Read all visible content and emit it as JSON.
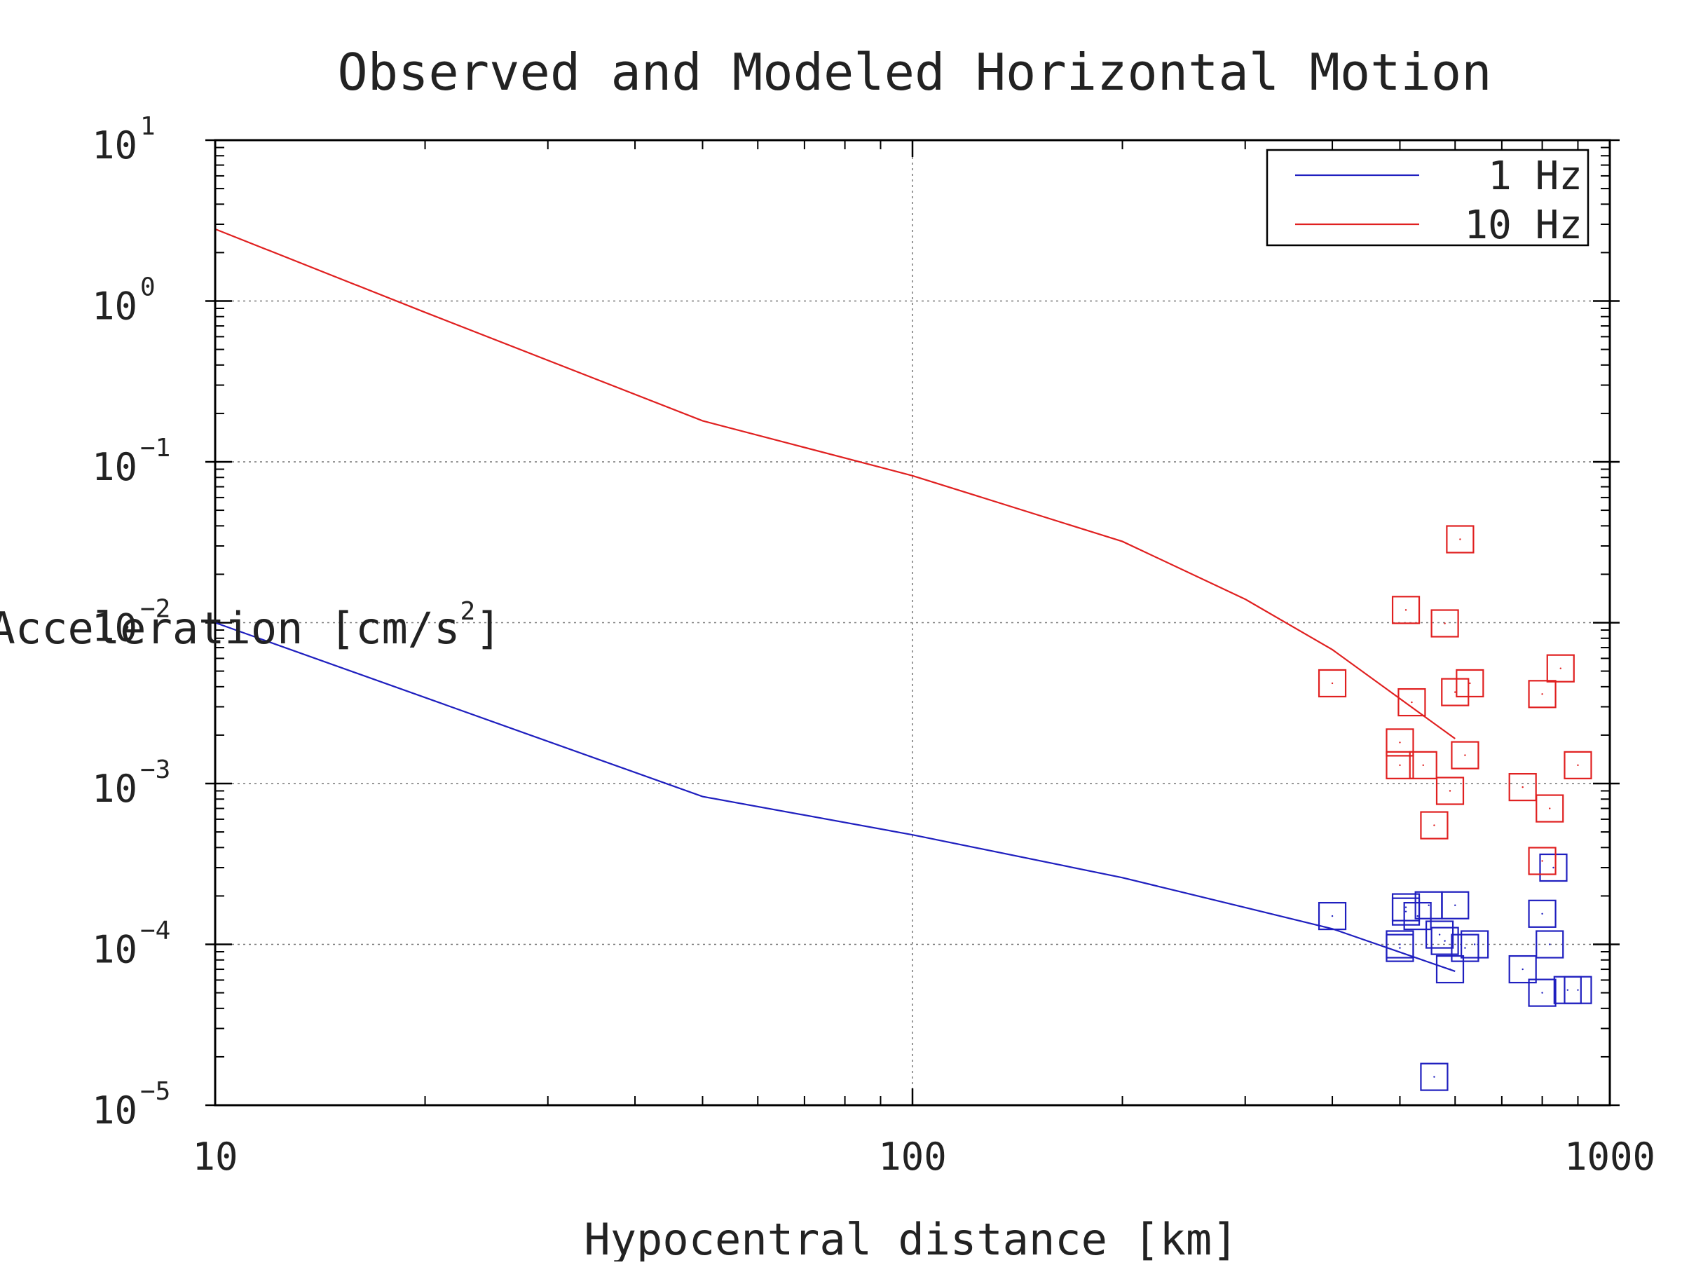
{
  "chart_data": {
    "type": "scatter",
    "title": "Observed and Modeled Horizontal Motion",
    "xlabel": "Hypocentral distance [km]",
    "ylabel": "Acceleration [cm/s2]",
    "ylabel_base": "Acceleration [cm/s",
    "ylabel_exp": "2",
    "ylabel_tail": "]",
    "x_scale": "log",
    "y_scale": "log",
    "xlim": [
      10,
      1000
    ],
    "ylim": [
      1e-05,
      10
    ],
    "grid": true,
    "legend_position": "top-right",
    "x_ticks": [
      {
        "value": 10,
        "label": "10"
      },
      {
        "value": 100,
        "label": "100"
      },
      {
        "value": 1000,
        "label": "1000"
      }
    ],
    "y_ticks": [
      {
        "value": 10,
        "base": "10",
        "exp": "1"
      },
      {
        "value": 1,
        "base": "10",
        "exp": "0"
      },
      {
        "value": 0.1,
        "base": "10",
        "exp": "−1"
      },
      {
        "value": 0.01,
        "base": "10",
        "exp": "−2"
      },
      {
        "value": 0.001,
        "base": "10",
        "exp": "−3"
      },
      {
        "value": 0.0001,
        "base": "10",
        "exp": "−4"
      },
      {
        "value": 1e-05,
        "base": "10",
        "exp": "−5"
      }
    ],
    "series": [
      {
        "name": "1 Hz",
        "color": "#1f1fbf",
        "model": {
          "x": [
            10,
            50,
            100,
            200,
            400,
            600
          ],
          "y": [
            0.01,
            0.00083,
            0.00048,
            0.00026,
            0.000125,
            6.8e-05
          ]
        },
        "observed": {
          "x": [
            400,
            500,
            500,
            510,
            510,
            530,
            550,
            560,
            570,
            580,
            590,
            600,
            620,
            640,
            750,
            800,
            800,
            820,
            830,
            870,
            900
          ],
          "y": [
            0.00015,
            9.5e-05,
            0.0001,
            0.00017,
            0.00016,
            0.00015,
            0.000175,
            1.5e-05,
            0.000115,
            0.000105,
            7e-05,
            0.000175,
            9.5e-05,
            0.0001,
            7e-05,
            5e-05,
            0.000155,
            0.0001,
            0.0003,
            5.2e-05,
            5.2e-05
          ]
        }
      },
      {
        "name": "10 Hz",
        "color": "#e02020",
        "model": {
          "x": [
            10,
            20,
            50,
            100,
            200,
            300,
            400,
            600
          ],
          "y": [
            2.8,
            0.85,
            0.18,
            0.082,
            0.032,
            0.014,
            0.0068,
            0.0019
          ]
        },
        "observed": {
          "x": [
            400,
            500,
            500,
            510,
            520,
            540,
            560,
            580,
            590,
            600,
            610,
            620,
            630,
            750,
            800,
            800,
            820,
            850,
            900
          ],
          "y": [
            0.0042,
            0.0013,
            0.0018,
            0.012,
            0.0032,
            0.0013,
            0.00055,
            0.0099,
            0.0009,
            0.0037,
            0.033,
            0.0015,
            0.0042,
            0.00095,
            0.00033,
            0.0036,
            0.0007,
            0.0052,
            0.0013
          ]
        }
      }
    ]
  }
}
